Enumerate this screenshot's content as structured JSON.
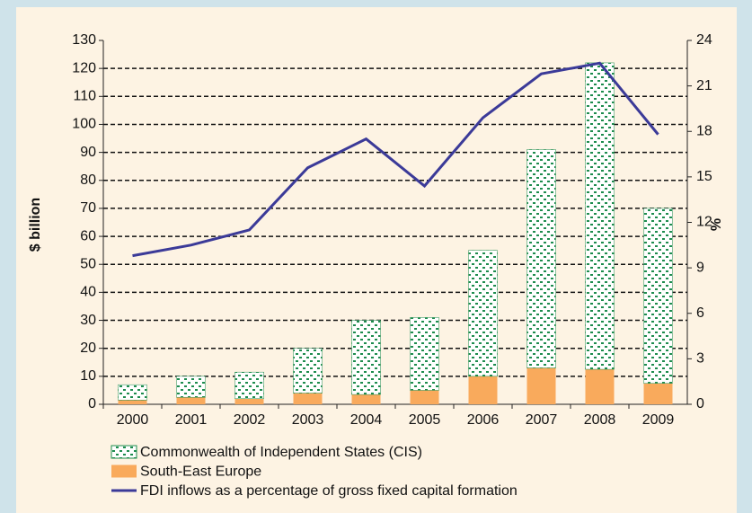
{
  "chart_data": {
    "type": "bar",
    "categories": [
      "2000",
      "2001",
      "2002",
      "2003",
      "2004",
      "2005",
      "2006",
      "2007",
      "2008",
      "2009"
    ],
    "series": [
      {
        "name": "Commonwealth of Independent States (CIS)",
        "type": "bar",
        "color": "#1e8c4e",
        "values": [
          5.5,
          7.5,
          9.5,
          16,
          26.5,
          26,
          45,
          78,
          109.5,
          62.5
        ]
      },
      {
        "name": "South-East Europe",
        "type": "bar",
        "color": "#f9aa5c",
        "values": [
          1.5,
          2.5,
          2,
          4,
          3.5,
          5,
          10,
          13,
          12.5,
          7.5
        ]
      },
      {
        "name": "FDI inflows as a percentage of gross fixed capital formation",
        "type": "line",
        "axis": "y2",
        "color": "#3b3a98",
        "values": [
          9.8,
          10.5,
          11.5,
          15.6,
          17.5,
          14.4,
          18.9,
          21.8,
          22.5,
          17.8
        ]
      }
    ],
    "ylabel": "$ billion",
    "y2label": "%",
    "ylim": [
      0,
      130
    ],
    "yticks": [
      0,
      10,
      20,
      30,
      40,
      50,
      60,
      70,
      80,
      90,
      100,
      110,
      120,
      130
    ],
    "y2lim": [
      0,
      24
    ],
    "y2ticks": [
      0,
      3,
      6,
      9,
      12,
      15,
      18,
      21,
      24
    ],
    "grid": true,
    "stacked": true
  }
}
